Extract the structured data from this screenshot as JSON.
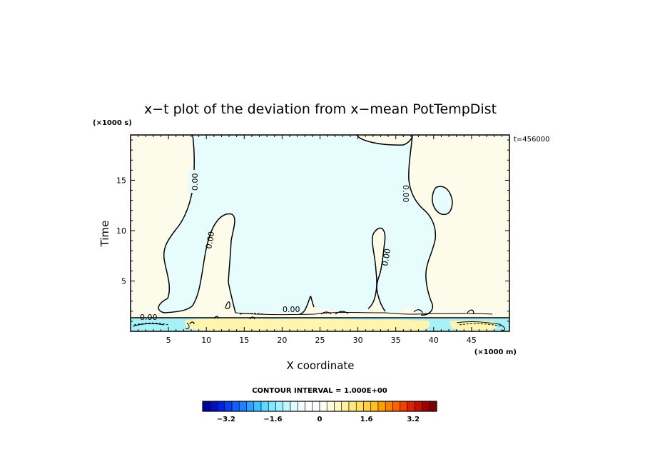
{
  "chart_data": {
    "type": "heatmap",
    "title": "x−t plot of the deviation from x−mean PotTempDist",
    "xlabel": "X coordinate",
    "ylabel": "Time",
    "x_unit": "(×1000 m)",
    "y_unit": "(×1000 s)",
    "time_annotation": "t=456000",
    "xlim": [
      0,
      50
    ],
    "ylim": [
      0,
      19.5
    ],
    "x_ticks": [
      "5",
      "10",
      "15",
      "20",
      "25",
      "30",
      "35",
      "40",
      "45"
    ],
    "x_tick_values": [
      5,
      10,
      15,
      20,
      25,
      30,
      35,
      40,
      45
    ],
    "y_ticks": [
      "5",
      "10",
      "15"
    ],
    "y_tick_values": [
      5,
      10,
      15
    ],
    "contour_labels": [
      "0.00",
      "0.00",
      "0.00",
      "0.00",
      "0.00",
      "0.00"
    ],
    "contour_interval_text": "CONTOUR INTERVAL = 1.000E+00",
    "colorbar": {
      "range": [
        -4,
        4
      ],
      "tick_labels": [
        "−3.2",
        "−1.6",
        "0",
        "1.6",
        "3.2"
      ],
      "tick_values": [
        -3.2,
        -1.6,
        0,
        1.6,
        3.2
      ],
      "colors": [
        "#0000a0",
        "#0010c0",
        "#0020e0",
        "#0040f0",
        "#1060ff",
        "#2080ff",
        "#30a0ff",
        "#40c0ff",
        "#60d8ff",
        "#80e8ff",
        "#a0f0ff",
        "#c0f8ff",
        "#e0fcff",
        "#f0ffff",
        "#ffffff",
        "#ffffff",
        "#fffff0",
        "#fffce0",
        "#fff8c0",
        "#fff0a0",
        "#ffe880",
        "#ffe060",
        "#ffd040",
        "#ffc020",
        "#ffa000",
        "#ff8000",
        "#ff6000",
        "#f04000",
        "#e02000",
        "#c01000",
        "#a00000",
        "#800000"
      ]
    },
    "colors": {
      "positive_fill": "#fdfbea",
      "negative_fill": "#e6fcfd",
      "cold_band": "#a8f0f8",
      "warm_band": "#fff4b0"
    }
  }
}
